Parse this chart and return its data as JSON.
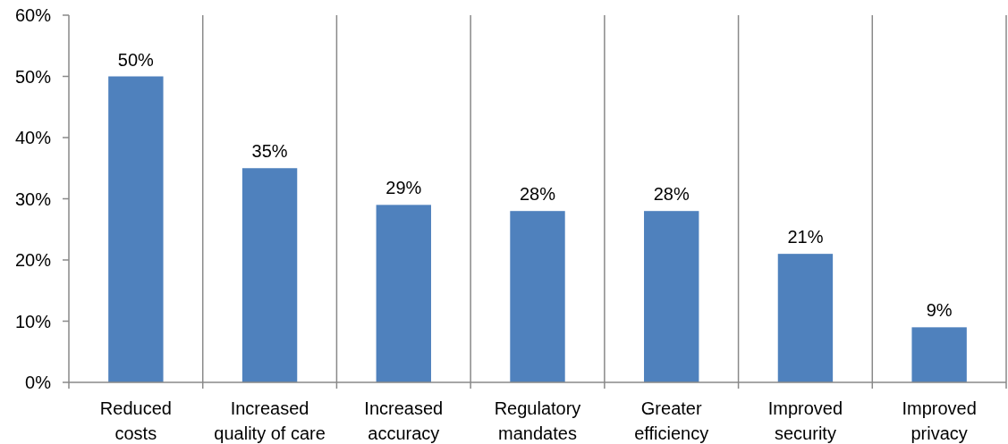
{
  "chart_data": {
    "type": "bar",
    "categories": [
      "Reduced costs",
      "Increased quality of care",
      "Increased accuracy",
      "Regulatory mandates",
      "Greater efficiency",
      "Improved security",
      "Improved privacy"
    ],
    "values": [
      50,
      35,
      29,
      28,
      28,
      21,
      9
    ],
    "value_labels": [
      "50%",
      "35%",
      "29%",
      "28%",
      "28%",
      "21%",
      "9%"
    ],
    "color": "#4f81bd",
    "ylim": [
      0,
      60
    ],
    "yticks": [
      {
        "value": 0,
        "label": "0%"
      },
      {
        "value": 10,
        "label": "10%"
      },
      {
        "value": 20,
        "label": "20%"
      },
      {
        "value": 30,
        "label": "30%"
      },
      {
        "value": 40,
        "label": "40%"
      },
      {
        "value": 50,
        "label": "50%"
      },
      {
        "value": 60,
        "label": "60%"
      }
    ],
    "grid": "x"
  }
}
